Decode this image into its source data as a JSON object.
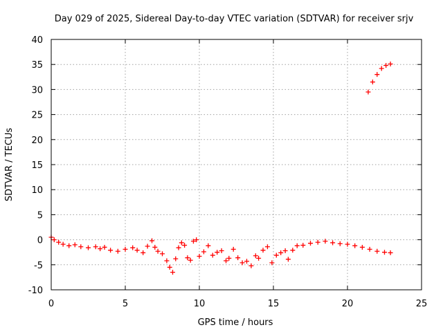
{
  "chart_data": {
    "type": "scatter",
    "title": "Day 029 of 2025, Sidereal Day-to-day VTEC variation (SDTVAR) for receiver srjv",
    "xlabel": "GPS time / hours",
    "ylabel": "SDTVAR / TECUs",
    "xlim": [
      0,
      25
    ],
    "ylim": [
      -10,
      40
    ],
    "xticks": [
      0,
      5,
      10,
      15,
      20,
      25
    ],
    "yticks": [
      -10,
      -5,
      0,
      5,
      10,
      15,
      20,
      25,
      30,
      35,
      40
    ],
    "xtick_labels": [
      "0",
      "5",
      "10",
      "15",
      "20",
      "25"
    ],
    "ytick_labels": [
      "-10",
      "-5",
      "0",
      "5",
      "10",
      "15",
      "20",
      "25",
      "30",
      "35",
      "40"
    ],
    "grid": true,
    "marker": "+",
    "series_color": "#ff0000",
    "series": [
      {
        "name": "SDTVAR",
        "x": [
          0.0,
          0.2,
          0.5,
          0.8,
          1.2,
          1.6,
          2.0,
          2.5,
          3.0,
          3.3,
          3.6,
          4.0,
          4.5,
          5.0,
          5.5,
          5.8,
          6.2,
          6.5,
          6.8,
          7.0,
          7.2,
          7.5,
          7.8,
          8.0,
          8.2,
          8.4,
          8.6,
          8.8,
          9.0,
          9.2,
          9.4,
          9.6,
          9.8,
          10.0,
          10.3,
          10.6,
          10.9,
          11.2,
          11.5,
          11.8,
          12.0,
          12.3,
          12.6,
          12.9,
          13.2,
          13.5,
          13.8,
          14.0,
          14.3,
          14.6,
          14.9,
          15.2,
          15.5,
          15.8,
          16.0,
          16.3,
          16.6,
          17.0,
          17.5,
          18.0,
          18.5,
          19.0,
          19.5,
          20.0,
          20.5,
          21.0,
          21.5,
          22.0,
          22.5,
          22.9,
          21.4,
          21.7,
          22.0,
          22.3,
          22.6,
          22.9
        ],
        "y": [
          0.5,
          0.0,
          -0.5,
          -0.9,
          -1.2,
          -1.0,
          -1.4,
          -1.6,
          -1.4,
          -1.8,
          -1.5,
          -2.1,
          -2.3,
          -1.9,
          -1.6,
          -2.1,
          -2.6,
          -1.3,
          -0.2,
          -1.5,
          -2.3,
          -2.8,
          -4.2,
          -5.5,
          -6.5,
          -3.8,
          -1.6,
          -0.6,
          -1.1,
          -3.6,
          -4.1,
          -0.3,
          0.0,
          -3.3,
          -2.4,
          -1.2,
          -3.1,
          -2.5,
          -2.2,
          -4.2,
          -3.7,
          -1.9,
          -3.6,
          -4.6,
          -4.3,
          -5.2,
          -3.2,
          -3.7,
          -2.1,
          -1.4,
          -4.6,
          -3.1,
          -2.6,
          -2.2,
          -3.9,
          -2.1,
          -1.2,
          -1.1,
          -0.7,
          -0.5,
          -0.3,
          -0.6,
          -0.8,
          -0.9,
          -1.2,
          -1.5,
          -1.9,
          -2.3,
          -2.5,
          -2.6,
          29.5,
          31.5,
          33.0,
          34.2,
          34.8,
          35.1
        ]
      }
    ]
  }
}
